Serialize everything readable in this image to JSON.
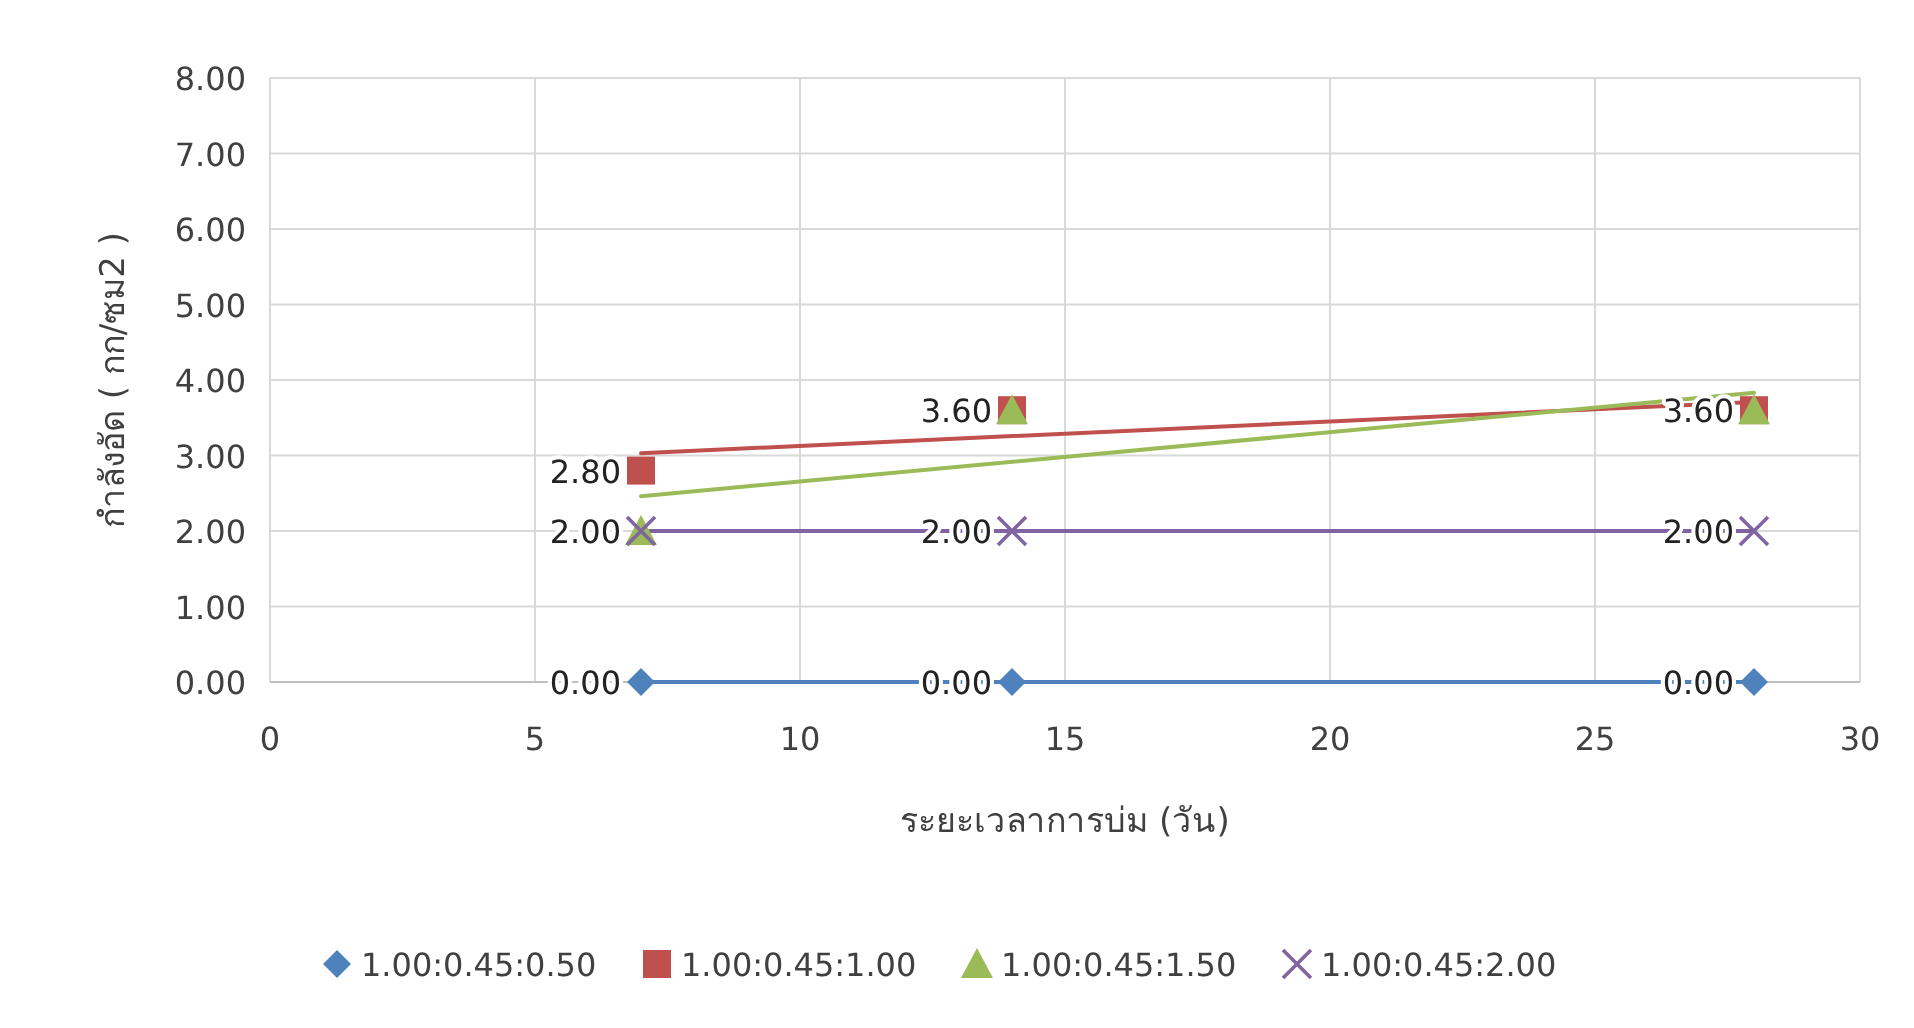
{
  "chart_data": {
    "type": "scatter",
    "xlabel": "ระยะเวลาการบ่ม (วัน)",
    "ylabel": "กำลังอัด ( กก/ซม2 )",
    "xlim": [
      0,
      30
    ],
    "xticks": [
      0,
      5,
      10,
      15,
      20,
      25,
      30
    ],
    "ylim": [
      0,
      8
    ],
    "yticks": [
      {
        "value": 0,
        "label": "0.00"
      },
      {
        "value": 1,
        "label": "1.00"
      },
      {
        "value": 2,
        "label": "2.00"
      },
      {
        "value": 3,
        "label": "3.00"
      },
      {
        "value": 4,
        "label": "4.00"
      },
      {
        "value": 5,
        "label": "5.00"
      },
      {
        "value": 6,
        "label": "6.00"
      },
      {
        "value": 7,
        "label": "7.00"
      },
      {
        "value": 8,
        "label": "8.00"
      }
    ],
    "grid": true,
    "legend": "bottom",
    "series": [
      {
        "type": "line",
        "color": "#4f81bd",
        "x": [
          7,
          28
        ],
        "values": [
          0,
          0
        ]
      },
      {
        "type": "line",
        "color": "#c0504d",
        "x": [
          7,
          28
        ],
        "values": [
          3.03,
          3.71
        ]
      },
      {
        "type": "line",
        "color": "#9bbb59",
        "x": [
          7,
          28
        ],
        "values": [
          2.46,
          3.83
        ]
      },
      {
        "type": "line",
        "color": "#8064a2",
        "x": [
          7,
          28
        ],
        "values": [
          2,
          2
        ]
      },
      {
        "name": "1.00:0.45:0.50",
        "color": "#4f81bd",
        "marker": "diamond",
        "x": [
          7,
          14,
          28
        ],
        "values": [
          0,
          0,
          0
        ],
        "value_labels": [
          "0.00",
          "0.00",
          "0.00"
        ]
      },
      {
        "name": "1.00:0.45:1.00",
        "color": "#c0504d",
        "marker": "square",
        "x": [
          7,
          14,
          28
        ],
        "values": [
          2.8,
          3.6,
          3.6
        ],
        "value_labels": [
          "2.80",
          "3.60",
          "3.60"
        ]
      },
      {
        "name": "1.00:0.45:1.50",
        "color": "#9bbb59",
        "marker": "triangle",
        "x": [
          7,
          14,
          28
        ],
        "values": [
          2,
          3.6,
          3.6
        ],
        "value_labels": [
          null,
          null,
          null
        ]
      },
      {
        "name": "1.00:0.45:2.00",
        "color": "#8064a2",
        "marker": "cross",
        "x": [
          7,
          14,
          28
        ],
        "values": [
          2,
          2,
          2
        ],
        "value_labels": [
          "2.00",
          "2.00",
          "2.00"
        ]
      }
    ]
  }
}
